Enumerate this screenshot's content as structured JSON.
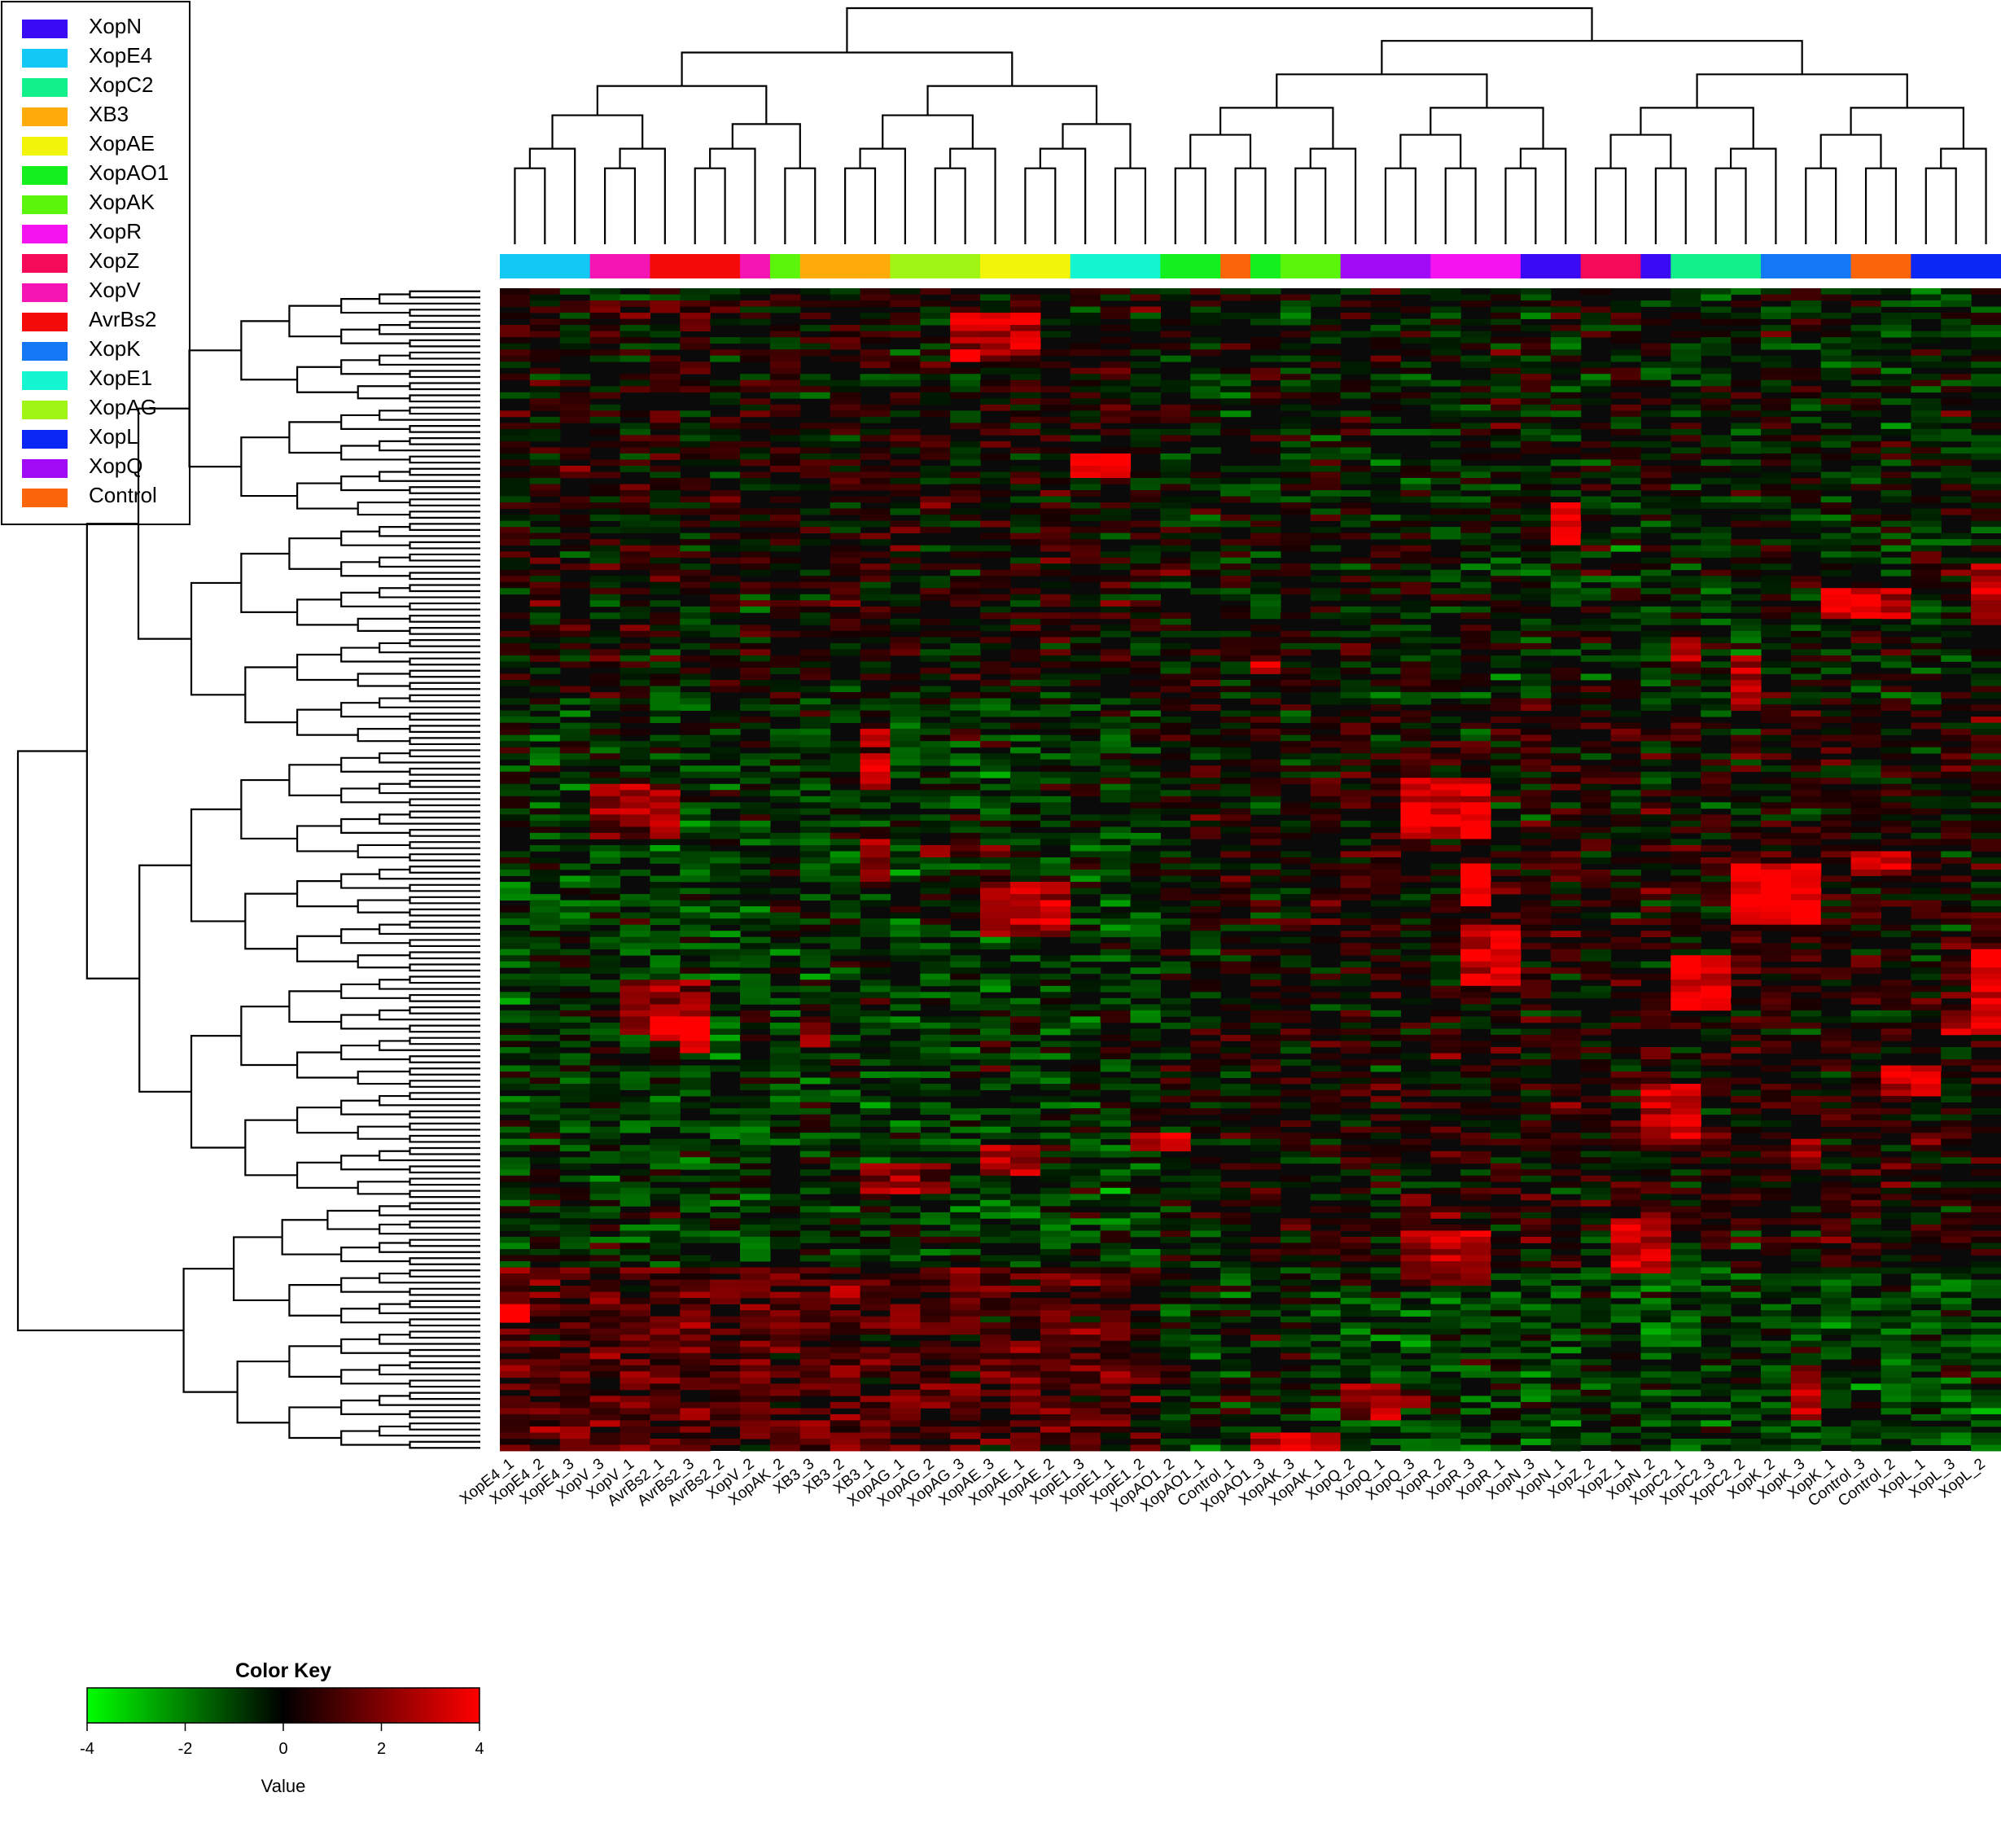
{
  "chart_data": {
    "type": "heatmap",
    "samples": [
      "XopE4_1",
      "XopE4_2",
      "XopE4_3",
      "XopV_3",
      "XopV_1",
      "AvrBs2_1",
      "AvrBs2_3",
      "AvrBs2_2",
      "XopV_2",
      "XopAK_2",
      "XB3_3",
      "XB3_2",
      "XB3_1",
      "XopAG_1",
      "XopAG_2",
      "XopAG_3",
      "XopAE_3",
      "XopAE_1",
      "XopAE_2",
      "XopE1_3",
      "XopE1_1",
      "XopE1_2",
      "XopAO1_2",
      "XopAO1_1",
      "Control_1",
      "XopAO1_3",
      "XopAK_3",
      "XopAK_1",
      "XopQ_2",
      "XopQ_1",
      "XopQ_3",
      "XopR_2",
      "XopR_3",
      "XopR_1",
      "XopN_3",
      "XopN_1",
      "XopZ_2",
      "XopZ_1",
      "XopN_2",
      "XopC2_1",
      "XopC2_3",
      "XopC2_2",
      "XopK_2",
      "XopK_3",
      "XopK_1",
      "Control_3",
      "Control_2",
      "XopL_1",
      "XopL_3",
      "XopL_2"
    ],
    "sample_groups": [
      "XopE4",
      "XopE4",
      "XopE4",
      "XopV",
      "XopV",
      "AvrBs2",
      "AvrBs2",
      "AvrBs2",
      "XopV",
      "XopAK",
      "XB3",
      "XB3",
      "XB3",
      "XopAG",
      "XopAG",
      "XopAG",
      "XopAE",
      "XopAE",
      "XopAE",
      "XopE1",
      "XopE1",
      "XopE1",
      "XopAO1",
      "XopAO1",
      "Control",
      "XopAO1",
      "XopAK",
      "XopAK",
      "XopQ",
      "XopQ",
      "XopQ",
      "XopR",
      "XopR",
      "XopR",
      "XopN",
      "XopN",
      "XopZ",
      "XopZ",
      "XopN",
      "XopC2",
      "XopC2",
      "XopC2",
      "XopK",
      "XopK",
      "XopK",
      "Control",
      "Control",
      "XopL",
      "XopL",
      "XopL"
    ],
    "legend": [
      {
        "label": "XopN",
        "color": "#3b0af5"
      },
      {
        "label": "XopE4",
        "color": "#12c8f5"
      },
      {
        "label": "XopC2",
        "color": "#12f08c"
      },
      {
        "label": "XB3",
        "color": "#ffab0a"
      },
      {
        "label": "XopAE",
        "color": "#f2f50a"
      },
      {
        "label": "XopAO1",
        "color": "#14f01e"
      },
      {
        "label": "XopAK",
        "color": "#5af50a"
      },
      {
        "label": "XopR",
        "color": "#f514f0"
      },
      {
        "label": "XopZ",
        "color": "#f50a5a"
      },
      {
        "label": "XopV",
        "color": "#f514b4"
      },
      {
        "label": "AvrBs2",
        "color": "#f50a0a"
      },
      {
        "label": "XopK",
        "color": "#1478f5"
      },
      {
        "label": "XopE1",
        "color": "#14f5d2"
      },
      {
        "label": "XopAG",
        "color": "#a0f514"
      },
      {
        "label": "XopL",
        "color": "#0a28f5"
      },
      {
        "label": "XopQ",
        "color": "#a00af5"
      },
      {
        "label": "Control",
        "color": "#fa640a"
      }
    ],
    "color_key": {
      "title": "Color Key",
      "xlabel": "Value",
      "range": [
        -4,
        4
      ],
      "ticks": [
        "-4",
        "-2",
        "0",
        "2",
        "4"
      ],
      "low_color": "#00ff00",
      "mid_color": "#000000",
      "high_color": "#ff0000"
    },
    "row_dendrogram": true,
    "column_dendrogram": true
  }
}
